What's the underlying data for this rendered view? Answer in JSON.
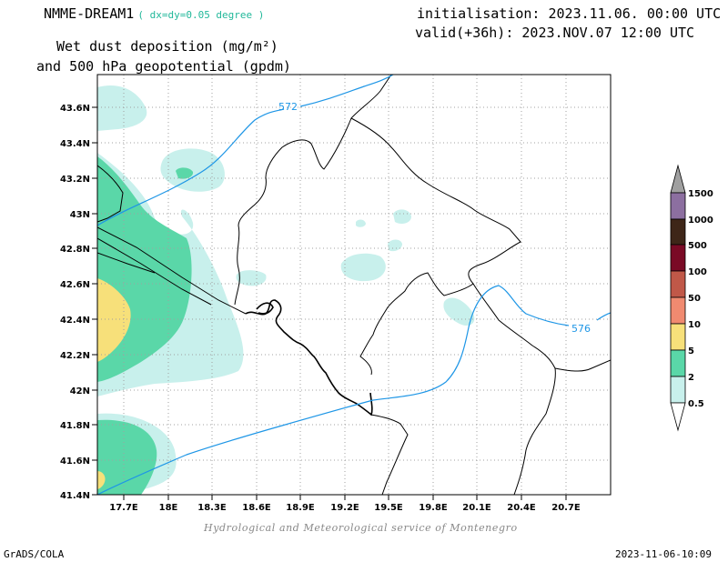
{
  "header": {
    "model": "NMME-DREAM1",
    "resolution": "( dx=dy=0.05 degree )",
    "init": "initialisation: 2023.11.06. 00:00 UTC",
    "valid": "valid(+36h): 2023.NOV.07 12:00 UTC",
    "variable_line1": "Wet dust deposition (mg/m²)",
    "variable_line2": "and 500 hPa geopotential (gpdm)"
  },
  "map": {
    "lat_labels": [
      "43.6N",
      "43.4N",
      "43.2N",
      "43N",
      "42.8N",
      "42.6N",
      "42.4N",
      "42.2N",
      "42N",
      "41.8N",
      "41.6N",
      "41.4N"
    ],
    "lon_labels": [
      "17.7E",
      "18E",
      "18.3E",
      "18.6E",
      "18.9E",
      "19.2E",
      "19.5E",
      "19.8E",
      "20.1E",
      "20.4E",
      "20.7E"
    ],
    "contours": [
      {
        "label": "572"
      },
      {
        "label": "576"
      }
    ],
    "contour_color": "#1e96e6"
  },
  "legend": {
    "levels": [
      "0.5",
      "2",
      "5",
      "10",
      "50",
      "100",
      "500",
      "1000",
      "1500"
    ],
    "colors": [
      "#c8f0ec",
      "#5ad7a8",
      "#f7e07a",
      "#f08a70",
      "#c05848",
      "#7a0a25",
      "#3e2618",
      "#8c6fa0",
      "#a0a0a0"
    ]
  },
  "footer": {
    "credit": "Hydrological and Meteorological service of Montenegro",
    "software": "GrADS/COLA",
    "timestamp": "2023-11-06-10:09"
  }
}
